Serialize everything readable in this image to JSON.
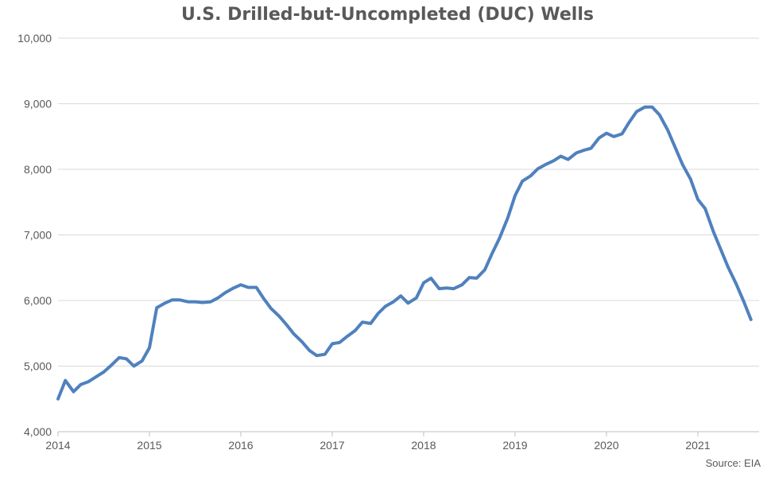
{
  "chart_data": {
    "type": "line",
    "title": "U.S. Drilled-but-Uncompleted (DUC) Wells",
    "xlabel": "",
    "ylabel": "",
    "ylim": [
      4000,
      10000
    ],
    "yticks": [
      4000,
      5000,
      6000,
      7000,
      8000,
      9000,
      10000
    ],
    "ytick_labels": [
      "4,000",
      "5,000",
      "6,000",
      "7,000",
      "8,000",
      "9,000",
      "10,000"
    ],
    "xlim": [
      2014.0,
      2021.67
    ],
    "xticks": [
      2014,
      2015,
      2016,
      2017,
      2018,
      2019,
      2020,
      2021
    ],
    "xtick_labels": [
      "2014",
      "2015",
      "2016",
      "2017",
      "2018",
      "2019",
      "2020",
      "2021"
    ],
    "grid": true,
    "line_color": "#4F81BD",
    "series": [
      {
        "values": [
          [
            2014.0,
            4500
          ],
          [
            2014.08,
            4780
          ],
          [
            2014.17,
            4610
          ],
          [
            2014.25,
            4720
          ],
          [
            2014.33,
            4760
          ],
          [
            2014.42,
            4840
          ],
          [
            2014.5,
            4910
          ],
          [
            2014.58,
            5010
          ],
          [
            2014.67,
            5130
          ],
          [
            2014.75,
            5110
          ],
          [
            2014.83,
            5000
          ],
          [
            2014.92,
            5080
          ],
          [
            2015.0,
            5280
          ],
          [
            2015.08,
            5890
          ],
          [
            2015.17,
            5960
          ],
          [
            2015.25,
            6010
          ],
          [
            2015.33,
            6010
          ],
          [
            2015.42,
            5980
          ],
          [
            2015.5,
            5980
          ],
          [
            2015.58,
            5970
          ],
          [
            2015.67,
            5980
          ],
          [
            2015.75,
            6040
          ],
          [
            2015.83,
            6120
          ],
          [
            2015.92,
            6190
          ],
          [
            2016.0,
            6240
          ],
          [
            2016.08,
            6200
          ],
          [
            2016.17,
            6200
          ],
          [
            2016.25,
            6030
          ],
          [
            2016.33,
            5880
          ],
          [
            2016.42,
            5760
          ],
          [
            2016.5,
            5630
          ],
          [
            2016.58,
            5490
          ],
          [
            2016.67,
            5370
          ],
          [
            2016.75,
            5240
          ],
          [
            2016.83,
            5160
          ],
          [
            2016.92,
            5180
          ],
          [
            2017.0,
            5340
          ],
          [
            2017.08,
            5360
          ],
          [
            2017.17,
            5460
          ],
          [
            2017.25,
            5540
          ],
          [
            2017.33,
            5670
          ],
          [
            2017.42,
            5650
          ],
          [
            2017.5,
            5800
          ],
          [
            2017.58,
            5910
          ],
          [
            2017.67,
            5980
          ],
          [
            2017.75,
            6070
          ],
          [
            2017.83,
            5960
          ],
          [
            2017.92,
            6040
          ],
          [
            2018.0,
            6270
          ],
          [
            2018.08,
            6340
          ],
          [
            2018.17,
            6180
          ],
          [
            2018.25,
            6190
          ],
          [
            2018.33,
            6180
          ],
          [
            2018.42,
            6240
          ],
          [
            2018.5,
            6350
          ],
          [
            2018.58,
            6340
          ],
          [
            2018.67,
            6470
          ],
          [
            2018.75,
            6720
          ],
          [
            2018.83,
            6950
          ],
          [
            2018.92,
            7260
          ],
          [
            2019.0,
            7600
          ],
          [
            2019.08,
            7820
          ],
          [
            2019.17,
            7900
          ],
          [
            2019.25,
            8010
          ],
          [
            2019.33,
            8070
          ],
          [
            2019.42,
            8130
          ],
          [
            2019.5,
            8200
          ],
          [
            2019.58,
            8150
          ],
          [
            2019.67,
            8250
          ],
          [
            2019.75,
            8290
          ],
          [
            2019.83,
            8320
          ],
          [
            2019.92,
            8480
          ],
          [
            2020.0,
            8550
          ],
          [
            2020.08,
            8500
          ],
          [
            2020.17,
            8540
          ],
          [
            2020.25,
            8720
          ],
          [
            2020.33,
            8880
          ],
          [
            2020.42,
            8950
          ],
          [
            2020.5,
            8950
          ],
          [
            2020.58,
            8830
          ],
          [
            2020.67,
            8600
          ],
          [
            2020.75,
            8340
          ],
          [
            2020.83,
            8080
          ],
          [
            2020.92,
            7850
          ],
          [
            2021.0,
            7540
          ],
          [
            2021.08,
            7400
          ],
          [
            2021.17,
            7050
          ],
          [
            2021.25,
            6780
          ],
          [
            2021.33,
            6510
          ],
          [
            2021.42,
            6250
          ],
          [
            2021.5,
            5990
          ],
          [
            2021.58,
            5710
          ]
        ]
      }
    ]
  },
  "source": "Source: EIA"
}
